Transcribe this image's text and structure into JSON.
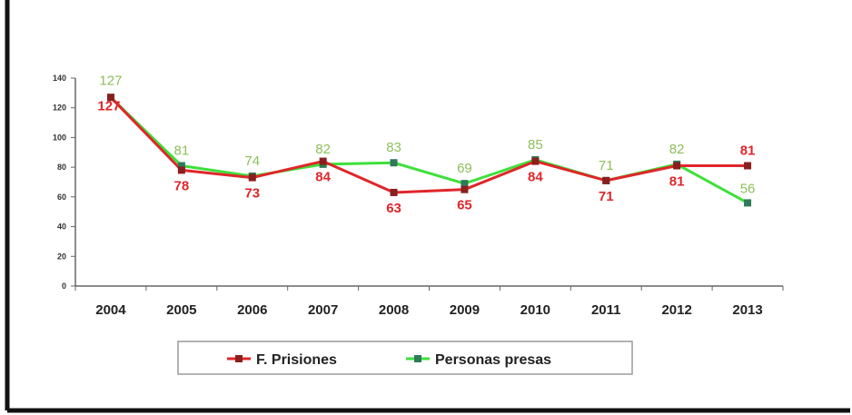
{
  "chart_data": {
    "type": "line",
    "categories": [
      "2004",
      "2005",
      "2006",
      "2007",
      "2008",
      "2009",
      "2010",
      "2011",
      "2012",
      "2013"
    ],
    "ylim": [
      0,
      140
    ],
    "yticks": [
      0,
      20,
      40,
      60,
      80,
      100,
      120,
      140
    ],
    "grid": false,
    "legend_position": "bottom",
    "series": [
      {
        "name": "F. Prisiones",
        "color": "#e0262a",
        "values": [
          127,
          78,
          73,
          84,
          63,
          65,
          84,
          71,
          81,
          81
        ],
        "labels": [
          "127",
          "78",
          "73",
          "84",
          "63",
          "65",
          "84",
          "71",
          "81",
          "81"
        ]
      },
      {
        "name": "Personas presas",
        "color": "#3ee03a",
        "label_color": "#8cbf5a",
        "values": [
          127,
          81,
          74,
          82,
          83,
          69,
          85,
          71,
          82,
          56
        ],
        "labels": [
          "127",
          "81",
          "74",
          "82",
          "83",
          "69",
          "85",
          "71",
          "82",
          "56"
        ]
      }
    ]
  }
}
